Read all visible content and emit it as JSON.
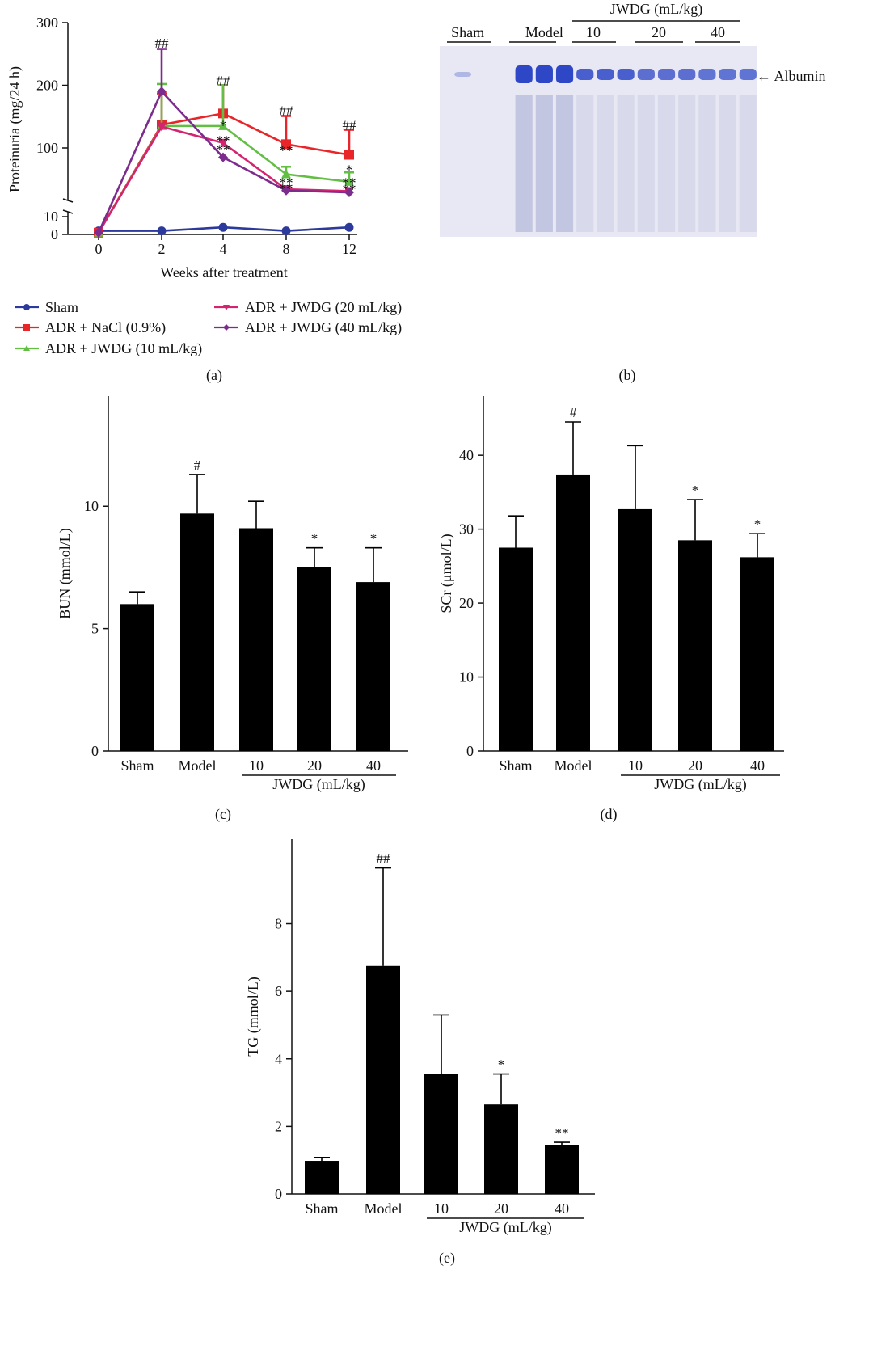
{
  "panel_labels": [
    "(a)",
    "(b)",
    "(c)",
    "(d)",
    "(e)"
  ],
  "chart_data": [
    {
      "id": "a",
      "type": "line",
      "xlabel": "Weeks after treatment",
      "ylabel": "Proteinuria (mg/24 h)",
      "x": [
        0,
        2,
        4,
        8,
        12
      ],
      "y_upper_ticks": [
        100,
        200,
        300
      ],
      "y_lower_ticks": [
        0,
        10
      ],
      "broken_axis": true,
      "legend": "below",
      "series": [
        {
          "name": "Sham",
          "color": "#2b3a9c",
          "marker": "circle",
          "values": [
            2,
            2,
            4,
            2,
            4
          ],
          "err": [
            0,
            0,
            0,
            0,
            0
          ]
        },
        {
          "name": "ADR + NaCl (0.9%)",
          "color": "#e8262a",
          "marker": "square",
          "values": [
            1,
            137,
            155,
            106,
            89
          ],
          "err": [
            0,
            50,
            45,
            45,
            40
          ]
        },
        {
          "name": "ADR + JWDG (10 mL/kg)",
          "color": "#62bf44",
          "marker": "triangle-up",
          "values": [
            1,
            135,
            135,
            58,
            46
          ],
          "err": [
            0,
            67,
            65,
            12,
            15
          ]
        },
        {
          "name": "ADR + JWDG (20 mL/kg)",
          "color": "#d4246f",
          "marker": "triangle-down",
          "values": [
            1,
            134,
            108,
            34,
            31
          ],
          "err": [
            0,
            0,
            0,
            0,
            0
          ]
        },
        {
          "name": "ADR + JWDG (40 mL/kg)",
          "color": "#7c2c8c",
          "marker": "diamond",
          "values": [
            1,
            190,
            85,
            32,
            29
          ],
          "err": [
            0,
            68,
            0,
            0,
            0
          ]
        }
      ],
      "annotations": [
        {
          "x": 2,
          "y": 268,
          "text": "##"
        },
        {
          "x": 4,
          "y": 208,
          "text": "##"
        },
        {
          "x": 8,
          "y": 160,
          "text": "##"
        },
        {
          "x": 12,
          "y": 137,
          "text": "##"
        },
        {
          "x": 4,
          "y": 137,
          "text": "*"
        },
        {
          "x": 4,
          "y": 112,
          "text": "**"
        },
        {
          "x": 4,
          "y": 98,
          "text": "**"
        },
        {
          "x": 8,
          "y": 97,
          "text": "**"
        },
        {
          "x": 12,
          "y": 66,
          "text": "*"
        },
        {
          "x": 8,
          "y": 45,
          "text": "**"
        },
        {
          "x": 12,
          "y": 45,
          "text": "**"
        },
        {
          "x": 8,
          "y": 36,
          "text": "**"
        },
        {
          "x": 12,
          "y": 35,
          "text": "**"
        }
      ]
    },
    {
      "id": "b",
      "type": "gel",
      "lane_labels": [
        "Sham",
        "Model"
      ],
      "group_title": "JWDG (mL/kg)",
      "dose_labels": [
        "10",
        "20",
        "40"
      ],
      "band_label": "← Albumin",
      "band_intensity": [
        0.3,
        0,
        0,
        1.0,
        1.0,
        1.0,
        0.85,
        0.85,
        0.85,
        0.75,
        0.75,
        0.75,
        0.72,
        0.72,
        0.72
      ]
    },
    {
      "id": "c",
      "type": "bar",
      "ylabel": "BUN (mmol/L)",
      "categories": [
        "Sham",
        "Model",
        "10",
        "20",
        "40"
      ],
      "group_label": "JWDG (mL/kg)",
      "values": [
        6.0,
        9.7,
        9.1,
        7.5,
        6.9
      ],
      "err": [
        0.5,
        1.6,
        1.1,
        0.8,
        1.4
      ],
      "sig": [
        "",
        "#",
        "",
        "*",
        "*"
      ],
      "ylim": [
        0,
        14.5
      ],
      "yticks": [
        0,
        5,
        10
      ]
    },
    {
      "id": "d",
      "type": "bar",
      "ylabel": "SCr (μmol/L)",
      "categories": [
        "Sham",
        "Model",
        "10",
        "20",
        "40"
      ],
      "group_label": "JWDG (mL/kg)",
      "values": [
        27.5,
        37.4,
        32.7,
        28.5,
        26.2
      ],
      "err": [
        4.3,
        7.1,
        8.6,
        5.5,
        3.2
      ],
      "sig": [
        "",
        "#",
        "",
        "*",
        "*"
      ],
      "ylim": [
        0,
        48
      ],
      "yticks": [
        0,
        10,
        20,
        30,
        40
      ]
    },
    {
      "id": "e",
      "type": "bar",
      "ylabel": "TG (mmol/L)",
      "categories": [
        "Sham",
        "Model",
        "10",
        "20",
        "40"
      ],
      "group_label": "JWDG (mL/kg)",
      "values": [
        0.98,
        6.75,
        3.55,
        2.65,
        1.45
      ],
      "err": [
        0.1,
        2.9,
        1.75,
        0.9,
        0.08
      ],
      "sig": [
        "",
        "##",
        "",
        "*",
        "**"
      ],
      "ylim": [
        0,
        10.5
      ],
      "yticks": [
        0,
        2,
        4,
        6,
        8
      ]
    }
  ]
}
